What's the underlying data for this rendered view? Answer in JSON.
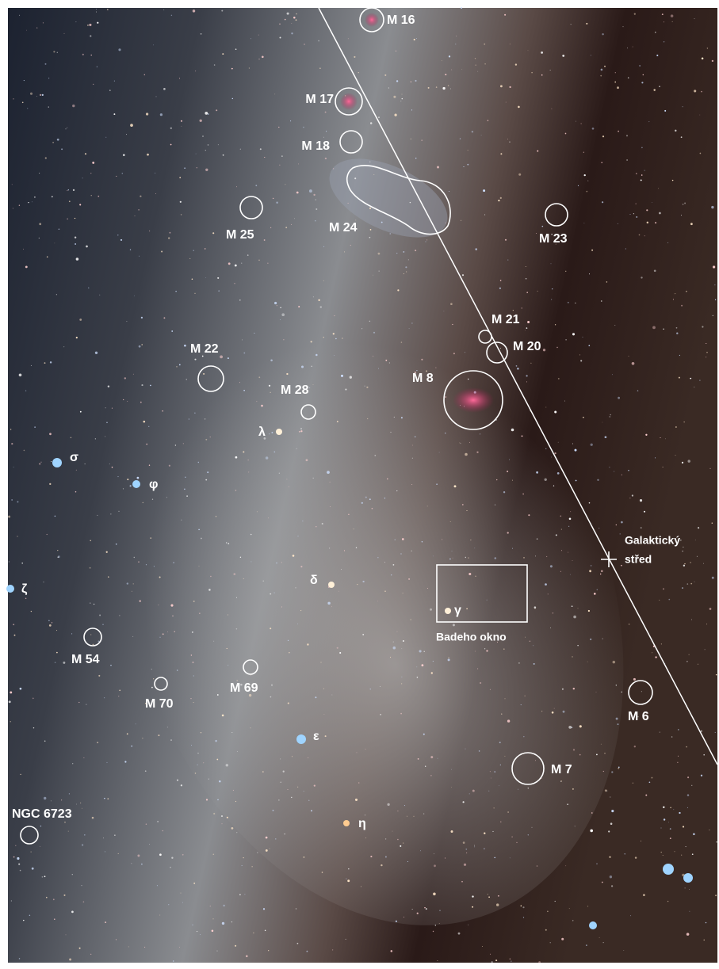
{
  "labels": {
    "m16": "M 16",
    "m17": "M 17",
    "m18": "M 18",
    "m24": "M 24",
    "m25": "M 25",
    "m23": "M 23",
    "m21": "M 21",
    "m20": "M 20",
    "m8": "M 8",
    "m22": "M 22",
    "m28": "M 28",
    "lambda": "λ",
    "sigma": "σ",
    "phi": "φ",
    "zeta": "ζ",
    "delta": "δ",
    "gamma": "γ",
    "galactic_center": [
      "Galaktický",
      "střed"
    ],
    "baade_window": "Badeho okno",
    "m54": "M 54",
    "m70": "M 70",
    "m69": "M 69",
    "m6": "M 6",
    "epsilon": "ε",
    "m7": "M 7",
    "ngc6723": "NGC 6723",
    "eta": "η"
  }
}
